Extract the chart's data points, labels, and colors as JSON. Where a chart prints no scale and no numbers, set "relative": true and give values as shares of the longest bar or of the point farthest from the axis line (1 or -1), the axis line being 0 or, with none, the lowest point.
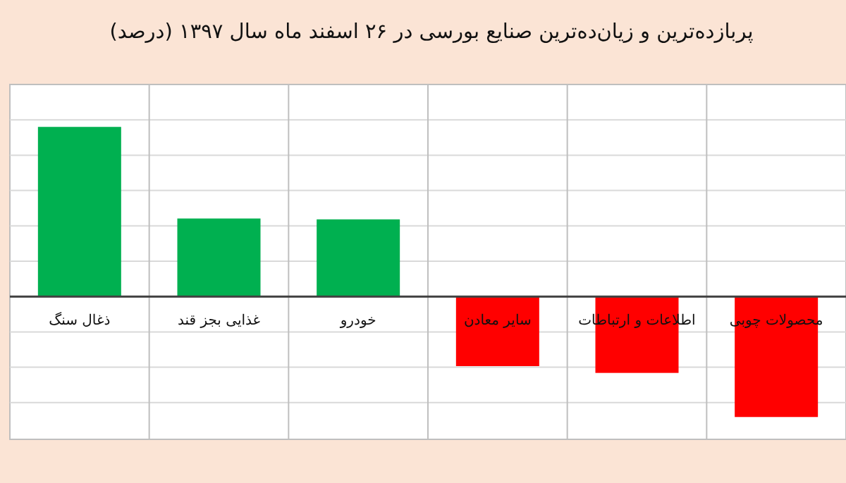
{
  "chart_data": {
    "type": "bar",
    "title": "پربازده‌ترین و زیان‌ده‌ترین صنایع بورسی در ۲۶ اسفند ماه سال ۱۳۹۷ (درصد)",
    "categories": [
      "ذغال سنگ",
      "غذایی بجز قند",
      "خودرو",
      "سایر معادن",
      "اطلاعات و ارتباطات",
      "محصولات چوبی"
    ],
    "values": [
      1,
      0.46,
      0.455,
      -0.41,
      -0.45,
      -0.71
    ],
    "colors": [
      "#00b050",
      "#00b050",
      "#00b050",
      "#ff0000",
      "#ff0000",
      "#ff0000"
    ],
    "relative": true,
    "grid": true
  }
}
